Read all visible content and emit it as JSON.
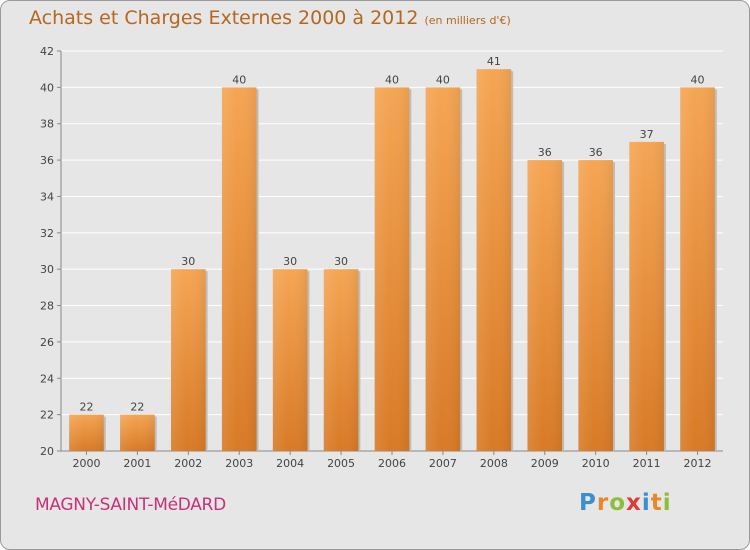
{
  "chart_data": {
    "type": "bar",
    "title": "Achats et Charges Externes 2000 à 2012",
    "subtitle": "(en milliers d'€)",
    "categories": [
      "2000",
      "2001",
      "2002",
      "2003",
      "2004",
      "2005",
      "2006",
      "2007",
      "2008",
      "2009",
      "2010",
      "2011",
      "2012"
    ],
    "values": [
      22,
      22,
      30,
      40,
      30,
      30,
      40,
      40,
      41,
      36,
      36,
      37,
      40
    ],
    "ylim": [
      20,
      42
    ],
    "yticks": [
      20,
      22,
      24,
      26,
      28,
      30,
      32,
      34,
      36,
      38,
      40,
      42
    ],
    "grid": true,
    "bar_color_top": "#f5a553",
    "bar_color_bottom": "#d87a26"
  },
  "footer": {
    "place": "MAGNY-SAINT-MéDARD",
    "brand": "Proxiti"
  },
  "colors": {
    "background": "#e6e6e6",
    "title": "#b4671e",
    "place": "#c8307a"
  }
}
